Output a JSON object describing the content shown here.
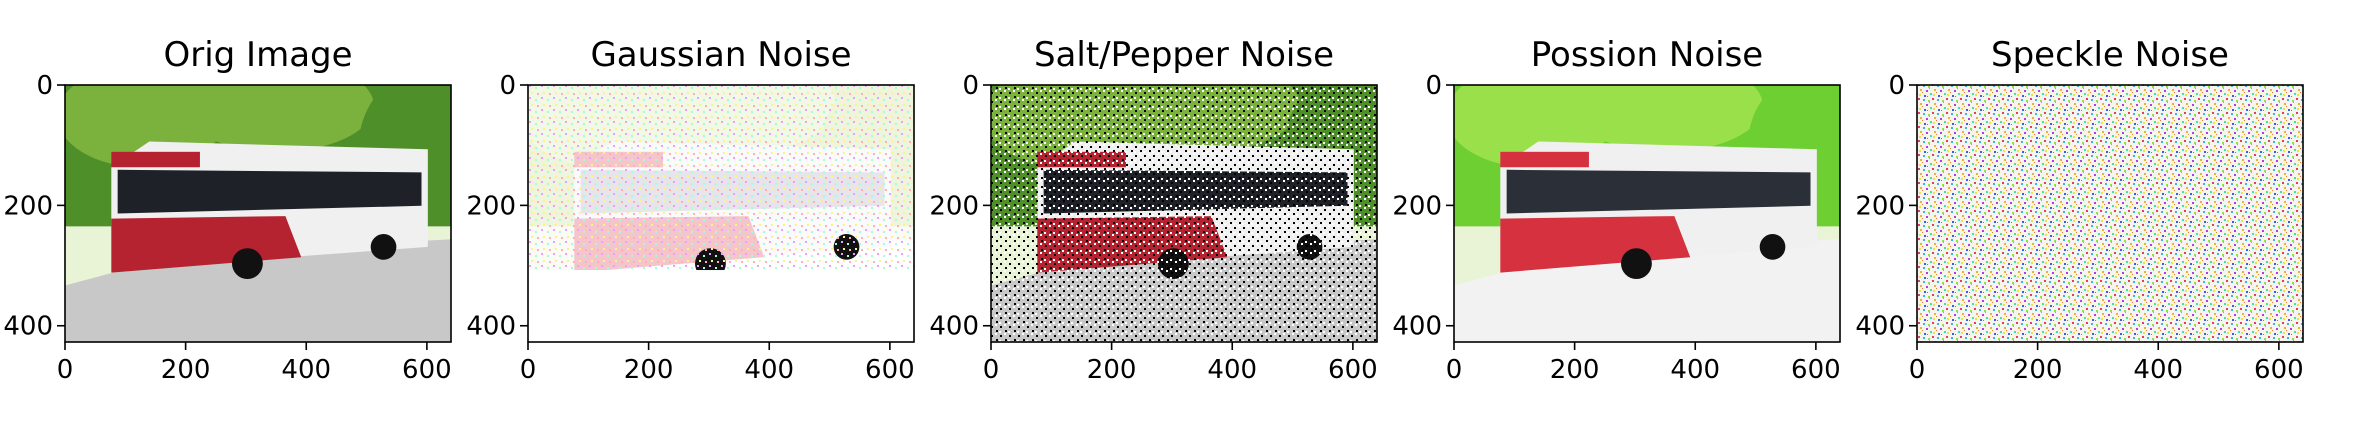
{
  "chart_data": [
    {
      "type": "image",
      "title": "Orig Image",
      "image": "bus-photo",
      "variant": "original",
      "x_ticks": [
        0,
        200,
        400,
        600
      ],
      "y_ticks": [
        0,
        200,
        400
      ],
      "xlim": [
        0,
        640
      ],
      "ylim": [
        427,
        0
      ]
    },
    {
      "type": "image",
      "title": "Gaussian Noise",
      "image": "bus-photo",
      "variant": "gaussian-noise",
      "x_ticks": [
        0,
        200,
        400,
        600
      ],
      "y_ticks": [
        0,
        200,
        400
      ],
      "xlim": [
        0,
        640
      ],
      "ylim": [
        427,
        0
      ]
    },
    {
      "type": "image",
      "title": "Salt/Pepper Noise",
      "image": "bus-photo",
      "variant": "salt-pepper-noise",
      "x_ticks": [
        0,
        200,
        400,
        600
      ],
      "y_ticks": [
        0,
        200,
        400
      ],
      "xlim": [
        0,
        640
      ],
      "ylim": [
        427,
        0
      ]
    },
    {
      "type": "image",
      "title": "Possion Noise",
      "image": "bus-photo",
      "variant": "poisson-noise",
      "x_ticks": [
        0,
        200,
        400,
        600
      ],
      "y_ticks": [
        0,
        200,
        400
      ],
      "xlim": [
        0,
        640
      ],
      "ylim": [
        427,
        0
      ]
    },
    {
      "type": "image",
      "title": "Speckle Noise",
      "image": "bus-photo",
      "variant": "speckle-noise",
      "x_ticks": [
        0,
        200,
        400,
        600
      ],
      "y_ticks": [
        0,
        200,
        400
      ],
      "xlim": [
        0,
        640
      ],
      "ylim": [
        427,
        0
      ]
    }
  ]
}
